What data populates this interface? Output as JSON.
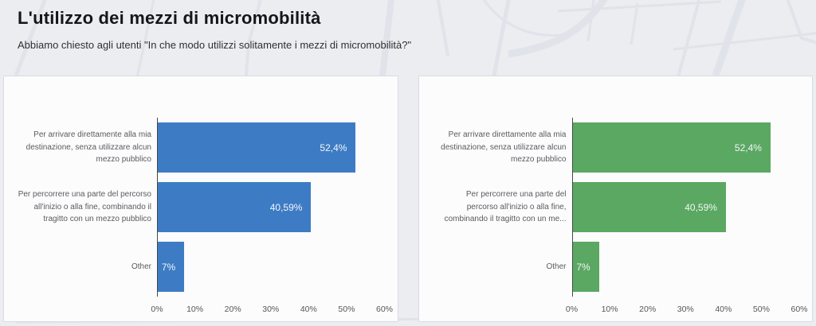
{
  "header": {
    "title": "L'utilizzo dei mezzi di micromobilità",
    "subtitle": "Abbiamo chiesto agli utenti \"In che modo utilizzi solitamente i mezzi di micromobilità?\""
  },
  "chart_data": [
    {
      "type": "bar",
      "orientation": "horizontal",
      "title": "",
      "bar_color": "#3D7CC4",
      "categories": [
        "Per arrivare direttamente alla mia destinazione, senza utilizzare alcun mezzo pubblico",
        "Per percorrere una parte del percorso all'inizio o alla fine, combinando il tragitto con un mezzo pubblico",
        "Other"
      ],
      "categories_display_lines": [
        [
          "Per arrivare direttamente alla mia",
          "destinazione, senza utilizzare alcun",
          "mezzo pubblico"
        ],
        [
          "Per percorrere una parte del percorso",
          "all'inizio o alla fine, combinando il",
          "tragitto con un mezzo pubblico"
        ],
        [
          "Other"
        ]
      ],
      "values": [
        52.4,
        40.59,
        7
      ],
      "value_labels": [
        "52,4%",
        "40,59%",
        "7%"
      ],
      "xlim": [
        0,
        60
      ],
      "x_ticks": [
        "0%",
        "10%",
        "20%",
        "30%",
        "40%",
        "50%",
        "60%"
      ],
      "grid": false,
      "legend": false
    },
    {
      "type": "bar",
      "orientation": "horizontal",
      "title": "",
      "bar_color": "#5AA861",
      "categories": [
        "Per arrivare direttamente alla mia destinazione, senza utilizzare alcun mezzo pubblico",
        "Per percorrere una parte del percorso all'inizio o alla fine, combinando il tragitto con un me...",
        "Other"
      ],
      "categories_display_lines": [
        [
          "Per arrivare direttamente alla mia",
          "destinazione, senza utilizzare alcun",
          "mezzo pubblico"
        ],
        [
          "Per percorrere una parte del",
          "percorso all'inizio o alla fine,",
          "combinando il tragitto con un me..."
        ],
        [
          "Other"
        ]
      ],
      "values": [
        52.4,
        40.59,
        7
      ],
      "value_labels": [
        "52,4%",
        "40,59%",
        "7%"
      ],
      "xlim": [
        0,
        60
      ],
      "x_ticks": [
        "0%",
        "10%",
        "20%",
        "30%",
        "40%",
        "50%",
        "60%"
      ],
      "grid": false,
      "legend": false
    }
  ],
  "background": {
    "page_color": "#ebedf0",
    "map_line_color": "#e0e3e9",
    "card_color": "#fcfcfd",
    "card_border_color": "#d9dce1"
  }
}
